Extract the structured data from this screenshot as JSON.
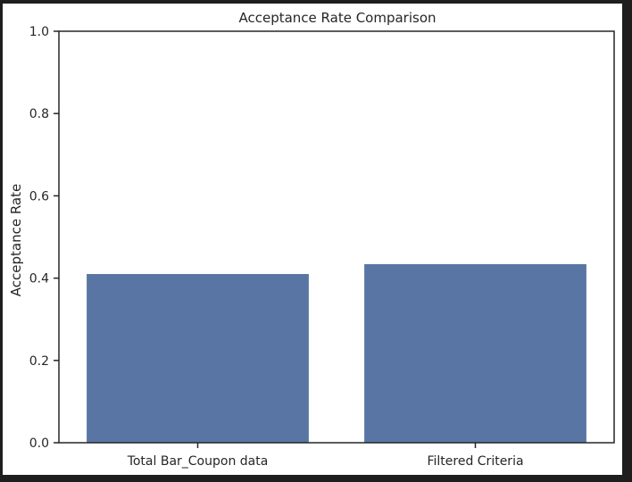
{
  "chart_data": {
    "type": "bar",
    "title": "Acceptance Rate Comparison",
    "xlabel": "",
    "ylabel": "Acceptance Rate",
    "categories": [
      "Total Bar_Coupon data",
      "Filtered Criteria"
    ],
    "values": [
      0.41,
      0.434
    ],
    "ylim": [
      0,
      1.0
    ],
    "yticks": [
      "0.0",
      "0.2",
      "0.4",
      "0.6",
      "0.8",
      "1.0"
    ],
    "bar_color": "#5975a4",
    "grid": false,
    "legend": "none"
  }
}
